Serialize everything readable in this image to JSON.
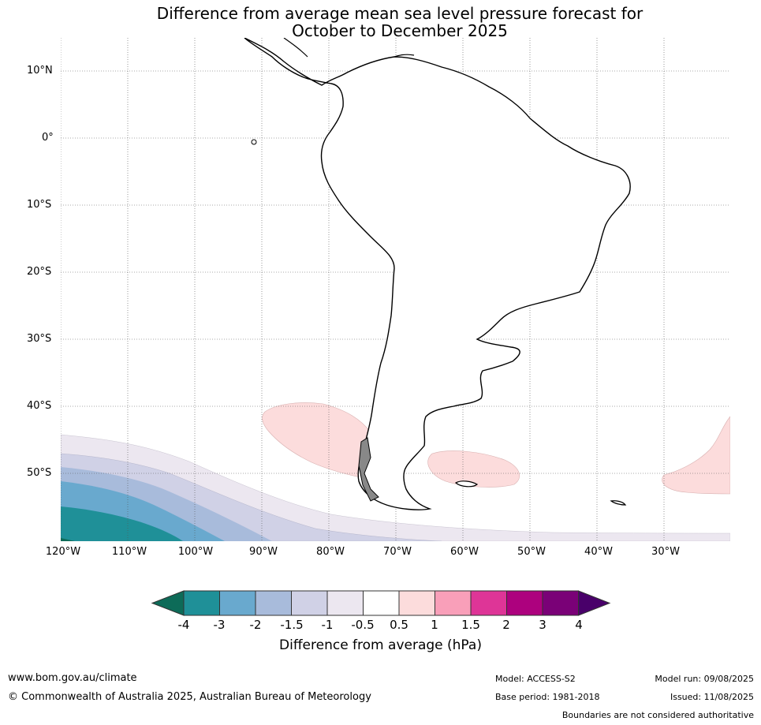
{
  "title_line1": "Difference from average mean sea level pressure forecast for",
  "title_line2": "October to December 2025",
  "lat_labels": [
    "10°N",
    "0°",
    "10°S",
    "20°S",
    "30°S",
    "40°S",
    "50°S"
  ],
  "lon_labels": [
    "120°W",
    "110°W",
    "100°W",
    "90°W",
    "80°W",
    "70°W",
    "60°W",
    "50°W",
    "40°W",
    "30°W"
  ],
  "colorbar": {
    "label": "Difference from average (hPa)",
    "ticks": [
      "-4",
      "-3",
      "-2",
      "-1.5",
      "-1",
      "-0.5",
      "0.5",
      "1",
      "1.5",
      "2",
      "3",
      "4"
    ],
    "colors": [
      "#0d6b58",
      "#1f9098",
      "#69a9ce",
      "#a8bbdb",
      "#d0d1e6",
      "#ece7f0",
      "#ffffff",
      "#fcdcdc",
      "#f99fb9",
      "#de3597",
      "#ad017e",
      "#7a0177",
      "#49006a"
    ]
  },
  "footer": {
    "url": "www.bom.gov.au/climate",
    "copyright": "© Commonwealth of Australia 2025, Australian Bureau of Meteorology",
    "model": "Model: ACCESS-S2",
    "base_period": "Base period: 1981-2018",
    "model_run": "Model run: 09/08/2025",
    "issued": "Issued: 11/08/2025",
    "boundaries": "Boundaries are not considered authoritative"
  }
}
